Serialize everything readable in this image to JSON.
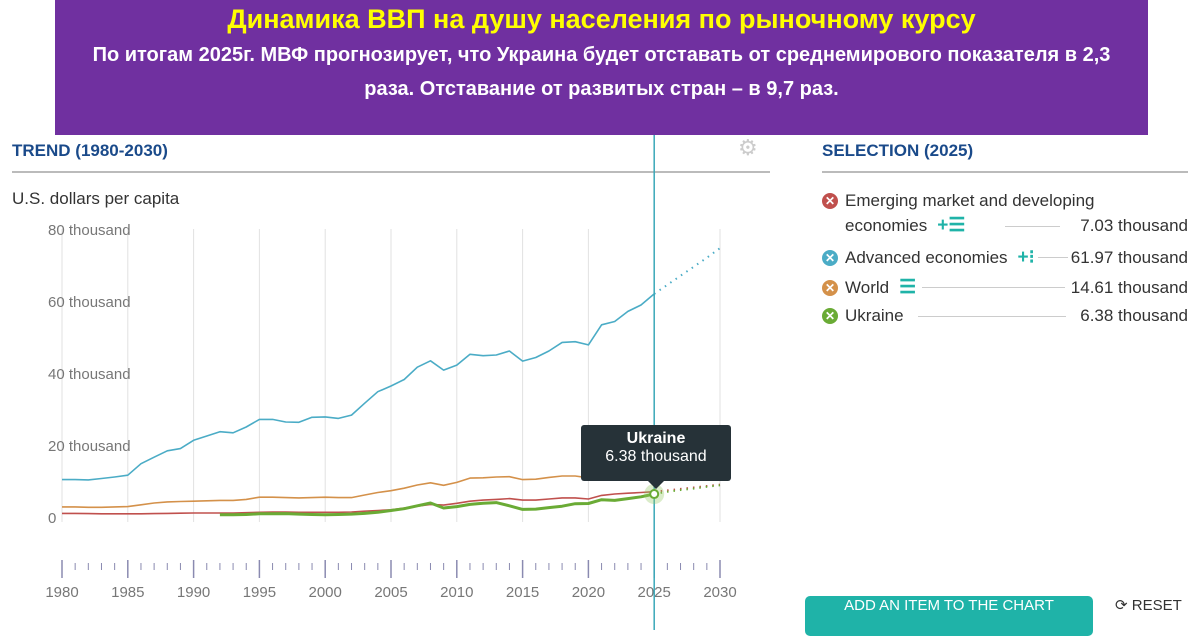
{
  "banner": {
    "title": "Динамика ВВП на душу населения по рыночному курсу",
    "subtitle": "По итогам 2025г. МВФ прогнозирует, что Украина будет отставать от среднемирового показателя в 2,3 раза. Отставание от развитых стран – в 9,7 раз."
  },
  "trend_title": "TREND (1980-2030)",
  "selection_title": "SELECTION (2025)",
  "tooltip": {
    "name": "Ukraine",
    "value": "6.38 thousand"
  },
  "legend": [
    {
      "label": "Emerging market and developing economies",
      "value": "7.03 thousand",
      "tools": "+☰",
      "color": "#c0504d"
    },
    {
      "label": "Advanced economies",
      "value": "61.97 thousand",
      "tools": "+⁝",
      "color": "#4bacc6"
    },
    {
      "label": "World",
      "value": "14.61 thousand",
      "tools": "☰",
      "color": "#d4914a"
    },
    {
      "label": "Ukraine",
      "value": "6.38 thousand",
      "tools": "",
      "color": "#6aab35"
    }
  ],
  "buttons": {
    "add": "ADD AN ITEM TO THE CHART",
    "reset": "RESET"
  },
  "chart_data": {
    "type": "line",
    "title": "TREND (1980-2030)",
    "ylabel": "U.S. dollars per capita",
    "xlabel": "",
    "xlim": [
      1980,
      2030
    ],
    "ylim": [
      0,
      80
    ],
    "forecast_from": 2025,
    "highlight_year": 2025,
    "yticks": [
      {
        "v": 0,
        "label": "0"
      },
      {
        "v": 20,
        "label": "20 thousand"
      },
      {
        "v": 40,
        "label": "40 thousand"
      },
      {
        "v": 60,
        "label": "60 thousand"
      },
      {
        "v": 80,
        "label": "80 thousand"
      }
    ],
    "xticks": [
      1980,
      1985,
      1990,
      1995,
      2000,
      2005,
      2010,
      2015,
      2020,
      2025,
      2030
    ],
    "series": [
      {
        "name": "Advanced economies",
        "color": "#4bacc6",
        "width": 1.6,
        "start": 1980,
        "values": [
          10.4,
          10.4,
          10.3,
          10.7,
          11.1,
          11.6,
          14.8,
          16.6,
          18.4,
          19,
          21.3,
          22.5,
          23.7,
          23.4,
          25,
          27.1,
          27.1,
          26.4,
          26.3,
          27.7,
          27.8,
          27.4,
          28.3,
          31.6,
          34.8,
          36.4,
          38.2,
          41.6,
          43.4,
          40.8,
          42.2,
          45.2,
          44.8,
          45,
          46.1,
          43.3,
          44.3,
          46.1,
          48.5,
          48.7,
          47.8,
          53.4,
          54.3,
          57.1,
          58.9,
          61.97,
          64.5,
          67,
          69.5,
          72,
          74.7
        ]
      },
      {
        "name": "World",
        "color": "#d4914a",
        "width": 1.6,
        "start": 1980,
        "values": [
          2.8,
          2.8,
          2.7,
          2.7,
          2.8,
          2.9,
          3.4,
          3.9,
          4.2,
          4.3,
          4.4,
          4.5,
          4.6,
          4.6,
          4.9,
          5.5,
          5.5,
          5.4,
          5.3,
          5.4,
          5.5,
          5.4,
          5.4,
          6.1,
          6.8,
          7.3,
          8,
          8.9,
          9.5,
          8.8,
          9.6,
          10.8,
          10.9,
          11.1,
          11.2,
          10.4,
          10.5,
          11,
          11.4,
          11.4,
          10.9,
          12.4,
          13,
          13.5,
          14,
          14.61,
          15.3,
          16,
          16.7,
          17.4,
          18.1
        ]
      },
      {
        "name": "Emerging market and developing economies",
        "color": "#c0504d",
        "width": 1.6,
        "start": 1980,
        "values": [
          1,
          1,
          0.95,
          0.9,
          0.9,
          0.9,
          0.9,
          0.95,
          1,
          1.05,
          1.1,
          1.1,
          1.1,
          1.1,
          1.2,
          1.3,
          1.4,
          1.4,
          1.3,
          1.3,
          1.3,
          1.3,
          1.4,
          1.6,
          1.8,
          2,
          2.5,
          3,
          3.5,
          3.3,
          3.8,
          4.4,
          4.7,
          4.9,
          5.1,
          4.7,
          4.7,
          5,
          5.3,
          5.3,
          5,
          6,
          6.4,
          6.6,
          6.8,
          7.03,
          7.4,
          7.8,
          8.2,
          8.6,
          9
        ]
      },
      {
        "name": "Ukraine",
        "color": "#6aab35",
        "width": 3,
        "start": 1992,
        "values": [
          0.6,
          0.65,
          0.7,
          0.9,
          0.9,
          0.95,
          0.8,
          0.7,
          0.6,
          0.7,
          0.8,
          1,
          1.3,
          1.8,
          2.3,
          3.1,
          3.9,
          2.5,
          2.9,
          3.5,
          3.8,
          4,
          3.1,
          2.1,
          2.2,
          2.6,
          3,
          3.7,
          3.75,
          4.8,
          4.6,
          5.1,
          5.6,
          6.38,
          7,
          7.5,
          7.9,
          8.4,
          8.8
        ]
      }
    ]
  }
}
